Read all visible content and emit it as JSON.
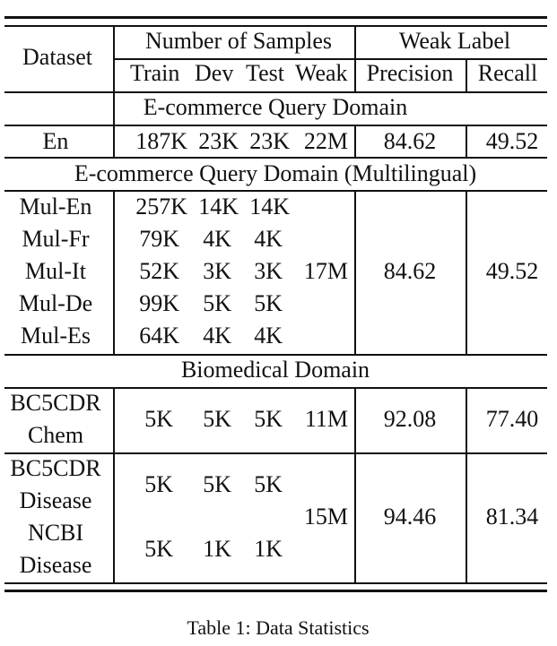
{
  "table": {
    "headers": {
      "dataset": "Dataset",
      "num_samples": "Number of Samples",
      "weak_label": "Weak Label",
      "train": "Train",
      "dev": "Dev",
      "test": "Test",
      "weak": "Weak",
      "precision": "Precision",
      "recall": "Recall"
    },
    "sections": {
      "ecommerce": "E-commerce Query Domain",
      "multilingual": "E-commerce Query Domain (Multilingual)",
      "biomedical": "Biomedical Domain"
    },
    "en": {
      "dataset": "En",
      "train": "187K",
      "dev": "23K",
      "test": "23K",
      "weak": "22M",
      "precision": "84.62",
      "recall": "49.52"
    },
    "multi": {
      "rows": [
        {
          "dataset": "Mul-En",
          "train": "257K",
          "dev": "14K",
          "test": "14K"
        },
        {
          "dataset": "Mul-Fr",
          "train": "79K",
          "dev": "4K",
          "test": "4K"
        },
        {
          "dataset": "Mul-It",
          "train": "52K",
          "dev": "3K",
          "test": "3K"
        },
        {
          "dataset": "Mul-De",
          "train": "99K",
          "dev": "5K",
          "test": "5K"
        },
        {
          "dataset": "Mul-Es",
          "train": "64K",
          "dev": "4K",
          "test": "4K"
        }
      ],
      "weak": "17M",
      "precision": "84.62",
      "recall": "49.52"
    },
    "bc5cdr_chem": {
      "dataset_line1": "BC5CDR",
      "dataset_line2": "Chem",
      "train": "5K",
      "dev": "5K",
      "test": "5K",
      "weak": "11M",
      "precision": "92.08",
      "recall": "77.40"
    },
    "disease": {
      "bc5cdr": {
        "dataset_line1": "BC5CDR",
        "dataset_line2": "Disease",
        "train": "5K",
        "dev": "5K",
        "test": "5K"
      },
      "ncbi": {
        "dataset_line1": "NCBI",
        "dataset_line2": "Disease",
        "train": "5K",
        "dev": "1K",
        "test": "1K"
      },
      "weak": "15M",
      "precision": "94.46",
      "recall": "81.34"
    }
  },
  "caption": "Table 1: Data Statistics"
}
